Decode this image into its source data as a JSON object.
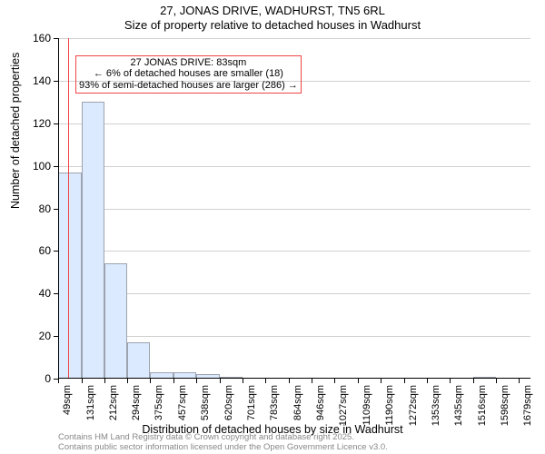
{
  "title_line1": "27, JONAS DRIVE, WADHURST, TN5 6RL",
  "title_line2": "Size of property relative to detached houses in Wadhurst",
  "ylabel": "Number of detached properties",
  "xlabel": "Distribution of detached houses by size in Wadhurst",
  "footer_line1": "Contains HM Land Registry data © Crown copyright and database right 2025.",
  "footer_line2": "Contains public sector information licensed under the Open Government Licence v3.0.",
  "chart": {
    "type": "histogram",
    "ylim": [
      0,
      160
    ],
    "ytick_step": 20,
    "x_min": 49,
    "x_max": 1720,
    "xticks": [
      49,
      131,
      212,
      294,
      375,
      457,
      538,
      620,
      701,
      783,
      864,
      946,
      1027,
      1109,
      1190,
      1272,
      1353,
      1435,
      1516,
      1598,
      1679
    ],
    "xtick_suffix": "sqm",
    "bin_edges": [
      49,
      131,
      212,
      294,
      375,
      457,
      538,
      620,
      701,
      783,
      864,
      946,
      1027,
      1109,
      1190,
      1272,
      1353,
      1435,
      1516,
      1598,
      1679
    ],
    "bar_values": [
      97,
      130,
      54,
      17,
      3,
      3,
      2,
      1,
      0,
      0,
      0,
      0,
      0,
      0,
      0,
      0,
      0,
      0,
      1,
      0
    ],
    "bar_fill": "#dbeafe",
    "bar_border": "#9ca3af",
    "marker_x": 83,
    "marker_color": "#ef4444",
    "background_color": "#ffffff",
    "grid_color": "#d0d0d0",
    "axis_fontsize": 12,
    "tick_fontsize": 11,
    "annotation": {
      "x": 220,
      "y_top": 152,
      "border_color": "#ef4444",
      "line1": "27 JONAS DRIVE: 83sqm",
      "line2": "← 6% of detached houses are smaller (18)",
      "line3": "93% of semi-detached houses are larger (286) →"
    }
  }
}
